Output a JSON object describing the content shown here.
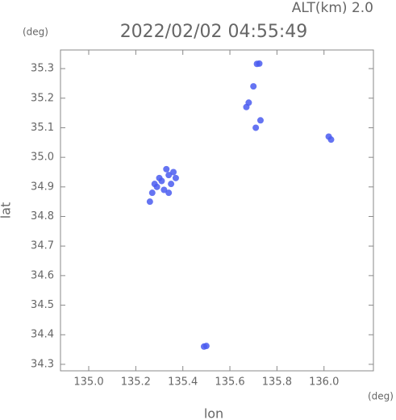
{
  "chart_data": {
    "type": "scatter",
    "title": "2022/02/02 04:55:49",
    "subtitle": "ALT(km) 2.0",
    "x_label": "lon",
    "y_label": "lat",
    "x_unit": "(deg)",
    "y_unit": "(deg)",
    "xlim": [
      134.88,
      136.21
    ],
    "ylim": [
      34.278,
      35.363
    ],
    "xticks": [
      {
        "value": 135.0,
        "label": "135.0"
      },
      135.2,
      135.4,
      135.6,
      135.8,
      {
        "value": 136.0,
        "label": "136.0"
      }
    ],
    "yticks": [
      34.3,
      34.4,
      34.5,
      34.6,
      34.7,
      34.8,
      34.9,
      {
        "value": 35.0,
        "label": "35.0"
      },
      35.1,
      35.2,
      35.3
    ],
    "series": [
      {
        "color": "#4a5cf0",
        "x": [
          135.34,
          135.31,
          135.36,
          135.29,
          135.33,
          135.35,
          135.32,
          135.3,
          135.37,
          135.34,
          135.28,
          135.27,
          135.26,
          135.725,
          135.715,
          135.7,
          135.68,
          135.67,
          135.73,
          135.71,
          136.02,
          136.03,
          135.49,
          135.5
        ],
        "y": [
          34.94,
          34.92,
          34.95,
          34.9,
          34.96,
          34.91,
          34.89,
          34.93,
          34.93,
          34.88,
          34.91,
          34.88,
          34.85,
          35.317,
          35.316,
          35.24,
          35.185,
          35.17,
          35.125,
          35.1,
          35.07,
          35.06,
          34.36,
          34.362
        ]
      }
    ]
  }
}
